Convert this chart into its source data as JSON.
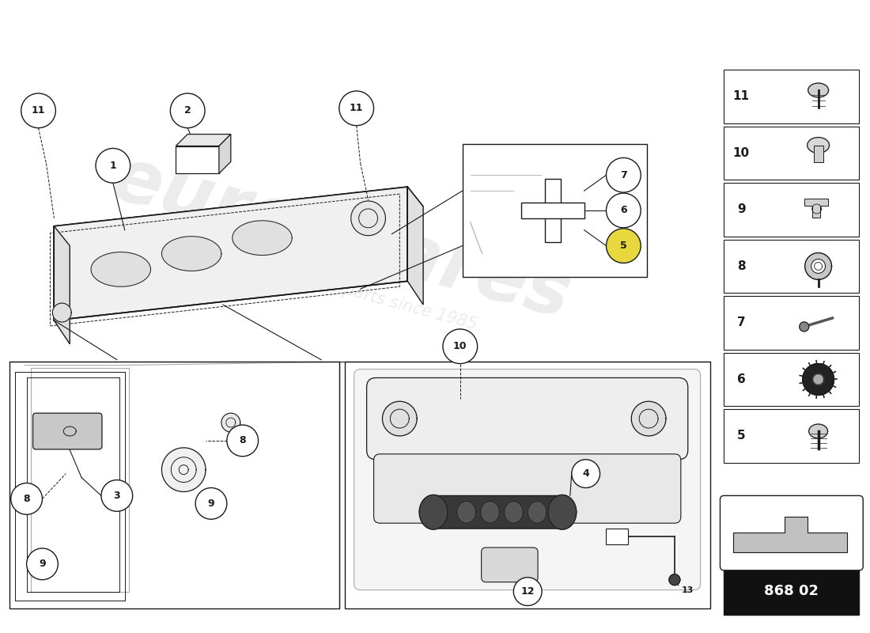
{
  "bg_color": "#ffffff",
  "line_color": "#1a1a1a",
  "part_number": "868 02",
  "parts_legend": [
    {
      "num": 11
    },
    {
      "num": 10
    },
    {
      "num": 9
    },
    {
      "num": 8
    },
    {
      "num": 7
    },
    {
      "num": 6
    },
    {
      "num": 5
    }
  ]
}
